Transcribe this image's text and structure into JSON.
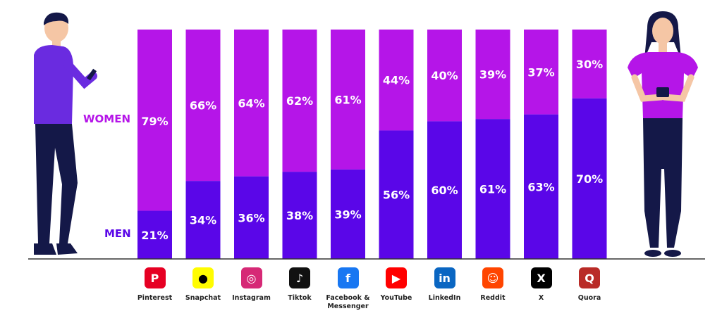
{
  "legend": {
    "women_label": "WOMEN",
    "men_label": "MEN"
  },
  "colors": {
    "women": "#B515E8",
    "men": "#5A06E8",
    "women_text": "#B515E8",
    "men_text": "#5A06E8",
    "baseline": "#333333",
    "figure_top_man": "#6A2BE0",
    "figure_top_woman": "#B515E8",
    "figure_pants": "#141848",
    "skin": "#F5C6A5",
    "hair": "#141848"
  },
  "chart_data": {
    "type": "bar",
    "stacked": true,
    "normalized": true,
    "categories": [
      "Pinterest",
      "Snapchat",
      "Instagram",
      "Tiktok",
      "Facebook & Messenger",
      "YouTube",
      "LinkedIn",
      "Reddit",
      "X",
      "Quora"
    ],
    "series": [
      {
        "name": "MEN",
        "values": [
          21,
          34,
          36,
          38,
          39,
          56,
          60,
          61,
          63,
          70
        ]
      },
      {
        "name": "WOMEN",
        "values": [
          79,
          66,
          64,
          62,
          61,
          44,
          40,
          39,
          37,
          30
        ]
      }
    ],
    "value_labels": {
      "men": [
        "21%",
        "34%",
        "36%",
        "38%",
        "39%",
        "56%",
        "60%",
        "61%",
        "63%",
        "70%"
      ],
      "women": [
        "79%",
        "66%",
        "64%",
        "62%",
        "61%",
        "44%",
        "40%",
        "39%",
        "37%",
        "30%"
      ]
    },
    "ylim": [
      0,
      100
    ],
    "legend": "left",
    "grid": false
  },
  "platforms": [
    {
      "label": "Pinterest",
      "icon": "pinterest-icon",
      "color": "#E60023",
      "glyph": "P"
    },
    {
      "label": "Snapchat",
      "icon": "snapchat-icon",
      "color": "#FFFC00",
      "glyph": "●"
    },
    {
      "label": "Instagram",
      "icon": "instagram-icon",
      "color": "#D62976",
      "glyph": "◎"
    },
    {
      "label": "Tiktok",
      "icon": "tiktok-icon",
      "color": "#111111",
      "glyph": "♪"
    },
    {
      "label": "Facebook &\nMessenger",
      "icon": "facebook-icon",
      "color": "#1877F2",
      "glyph": "f"
    },
    {
      "label": "YouTube",
      "icon": "youtube-icon",
      "color": "#FF0000",
      "glyph": "▶"
    },
    {
      "label": "LinkedIn",
      "icon": "linkedin-icon",
      "color": "#0A66C2",
      "glyph": "in"
    },
    {
      "label": "Reddit",
      "icon": "reddit-icon",
      "color": "#FF4500",
      "glyph": "☺"
    },
    {
      "label": "X",
      "icon": "x-icon",
      "color": "#000000",
      "glyph": "X"
    },
    {
      "label": "Quora",
      "icon": "quora-icon",
      "color": "#B92B27",
      "glyph": "Q"
    }
  ]
}
